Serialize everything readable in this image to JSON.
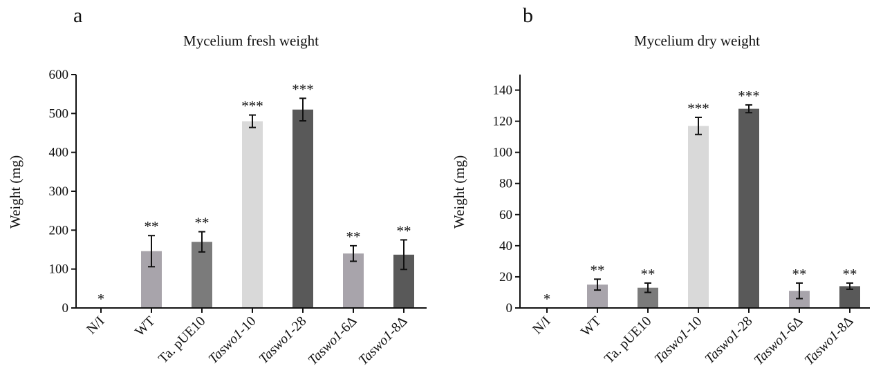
{
  "chart_data": [
    {
      "panel_label": "a",
      "type": "bar",
      "title": "Mycelium fresh weight",
      "xlabel": "",
      "ylabel": "Weight (mg)",
      "ylim": [
        0,
        600
      ],
      "yticks": [
        0,
        100,
        200,
        300,
        400,
        500,
        600
      ],
      "grid": false,
      "categories": [
        {
          "parts": [
            {
              "text": "N/I",
              "italic": false
            }
          ]
        },
        {
          "parts": [
            {
              "text": "WT",
              "italic": false
            }
          ]
        },
        {
          "parts": [
            {
              "text": "Ta. pUE10",
              "italic": false
            }
          ]
        },
        {
          "parts": [
            {
              "text": "Taswo1",
              "italic": true
            },
            {
              "text": "-10",
              "italic": false
            }
          ]
        },
        {
          "parts": [
            {
              "text": "Taswo1",
              "italic": true
            },
            {
              "text": "-28",
              "italic": false
            }
          ]
        },
        {
          "parts": [
            {
              "text": "Taswo1",
              "italic": true
            },
            {
              "text": "-6Δ",
              "italic": false
            }
          ]
        },
        {
          "parts": [
            {
              "text": "Taswo1",
              "italic": true
            },
            {
              "text": "-8Δ",
              "italic": false
            }
          ]
        }
      ],
      "values": [
        0,
        146,
        170,
        480,
        510,
        140,
        137
      ],
      "errors": [
        0,
        40,
        26,
        16,
        29,
        20,
        38
      ],
      "significance": [
        "*",
        "**",
        "**",
        "***",
        "***",
        "**",
        "**"
      ],
      "bar_colors": [
        "#ffffff",
        "#a8a4ab",
        "#7b7b7b",
        "#d9d9d9",
        "#595959",
        "#a8a4ab",
        "#595959"
      ]
    },
    {
      "panel_label": "b",
      "type": "bar",
      "title": "Mycelium dry weight",
      "xlabel": "",
      "ylabel": "Weight (mg)",
      "ylim": [
        0,
        150
      ],
      "yticks": [
        0,
        20,
        40,
        60,
        80,
        100,
        120,
        140
      ],
      "grid": false,
      "categories": [
        {
          "parts": [
            {
              "text": "N/I",
              "italic": false
            }
          ]
        },
        {
          "parts": [
            {
              "text": "WT",
              "italic": false
            }
          ]
        },
        {
          "parts": [
            {
              "text": "Ta. pUE10",
              "italic": false
            }
          ]
        },
        {
          "parts": [
            {
              "text": "Taswo1",
              "italic": true
            },
            {
              "text": "-10",
              "italic": false
            }
          ]
        },
        {
          "parts": [
            {
              "text": "Taswo1",
              "italic": true
            },
            {
              "text": "-28",
              "italic": false
            }
          ]
        },
        {
          "parts": [
            {
              "text": "Taswo1",
              "italic": true
            },
            {
              "text": "-6Δ",
              "italic": false
            }
          ]
        },
        {
          "parts": [
            {
              "text": "Taswo1",
              "italic": true
            },
            {
              "text": "-8Δ",
              "italic": false
            }
          ]
        }
      ],
      "values": [
        0,
        15,
        13,
        117,
        128,
        11,
        14
      ],
      "errors": [
        0,
        3.5,
        3,
        5.5,
        2.5,
        5,
        2
      ],
      "significance": [
        "*",
        "**",
        "**",
        "***",
        "***",
        "**",
        "**"
      ],
      "bar_colors": [
        "#ffffff",
        "#a8a4ab",
        "#7b7b7b",
        "#d9d9d9",
        "#595959",
        "#a8a4ab",
        "#595959"
      ]
    }
  ]
}
